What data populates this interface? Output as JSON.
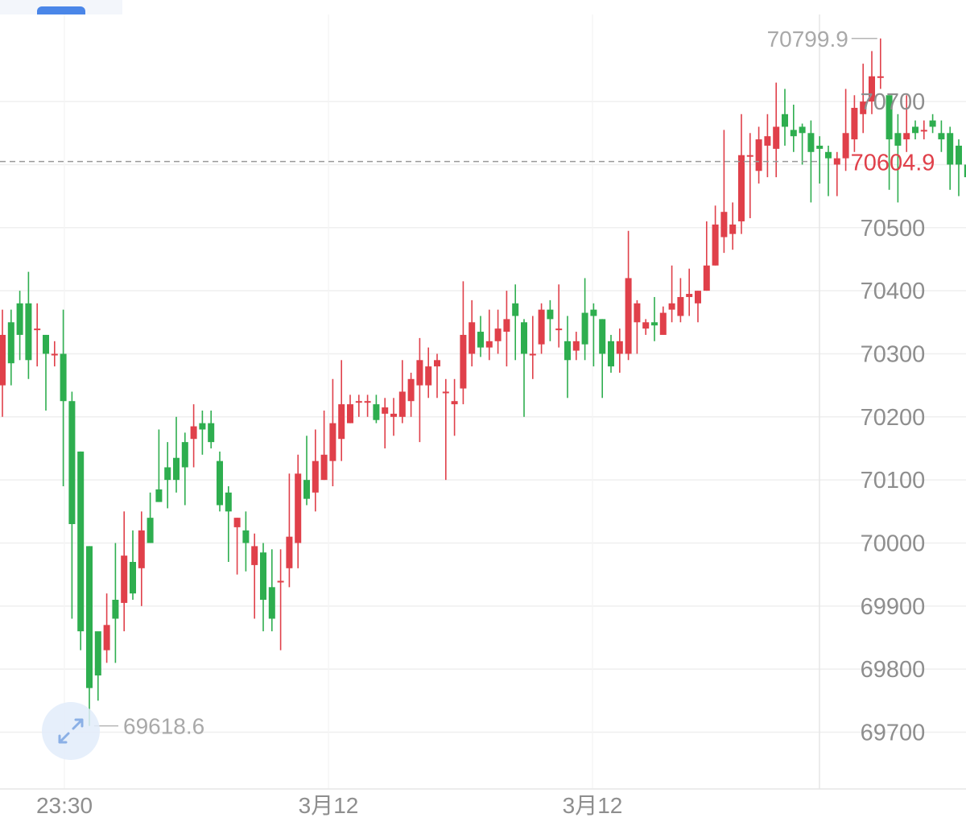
{
  "chart_data": {
    "type": "candlestick",
    "title": "",
    "xlabel": "",
    "ylabel": "",
    "ylim": [
      69610,
      70838
    ],
    "y_ticks": [
      "69700",
      "69800",
      "69900",
      "70000",
      "70100",
      "70200",
      "70300",
      "70400",
      "70500",
      "70600",
      "70700"
    ],
    "x_ticks": [
      "23:30",
      "3月12",
      "3月12"
    ],
    "current_price": "70604.9",
    "high_label": "70799.9",
    "low_label": "69618.6",
    "up_color": "#e0404a",
    "down_color": "#2eae4f",
    "candles": [
      [
        70250,
        70330,
        70200,
        70370
      ],
      [
        70350,
        70285,
        70250,
        70370
      ],
      [
        70380,
        70330,
        70290,
        70400
      ],
      [
        70380,
        70290,
        70260,
        70430
      ],
      [
        70340,
        70340,
        70280,
        70380
      ],
      [
        70330,
        70300,
        70210,
        70330
      ],
      [
        70300,
        70300,
        70280,
        70320
      ],
      [
        70300,
        70225,
        70090,
        70370
      ],
      [
        70225,
        70030,
        69880,
        70240
      ],
      [
        70145,
        69860,
        69830,
        70145
      ],
      [
        69995,
        69770,
        69710,
        69995
      ],
      [
        69860,
        69790,
        69750,
        69850
      ],
      [
        69830,
        69870,
        69810,
        69920
      ],
      [
        69910,
        69880,
        69810,
        70000
      ],
      [
        69905,
        69980,
        69860,
        70050
      ],
      [
        69970,
        69920,
        69910,
        70020
      ],
      [
        69960,
        70020,
        69900,
        70050
      ],
      [
        70040,
        70000,
        70000,
        70080
      ],
      [
        70085,
        70065,
        70065,
        70180
      ],
      [
        70120,
        70100,
        70055,
        70160
      ],
      [
        70135,
        70100,
        70080,
        70200
      ],
      [
        70160,
        70120,
        70060,
        70175
      ],
      [
        70165,
        70185,
        70120,
        70220
      ],
      [
        70190,
        70180,
        70140,
        70210
      ],
      [
        70190,
        70160,
        70150,
        70210
      ],
      [
        70130,
        70060,
        70050,
        70145
      ],
      [
        70080,
        70050,
        69970,
        70090
      ],
      [
        70025,
        70040,
        69950,
        70040
      ],
      [
        70020,
        70000,
        69955,
        70050
      ],
      [
        69965,
        69995,
        69880,
        70015
      ],
      [
        69985,
        69910,
        69860,
        70000
      ],
      [
        69930,
        69880,
        69860,
        69990
      ],
      [
        69940,
        69940,
        69830,
        69990
      ],
      [
        69960,
        70010,
        69930,
        70110
      ],
      [
        70000,
        70110,
        69960,
        70140
      ],
      [
        70100,
        70070,
        70060,
        70170
      ],
      [
        70080,
        70130,
        70050,
        70180
      ],
      [
        70100,
        70140,
        70100,
        70210
      ],
      [
        70130,
        70190,
        70090,
        70260
      ],
      [
        70165,
        70220,
        70130,
        70290
      ],
      [
        70190,
        70220,
        70190,
        70235
      ],
      [
        70225,
        70225,
        70200,
        70235
      ],
      [
        70225,
        70225,
        70200,
        70235
      ],
      [
        70220,
        70195,
        70190,
        70235
      ],
      [
        70205,
        70215,
        70150,
        70230
      ],
      [
        70200,
        70205,
        70170,
        70230
      ],
      [
        70200,
        70240,
        70190,
        70290
      ],
      [
        70225,
        70260,
        70200,
        70270
      ],
      [
        70250,
        70290,
        70160,
        70325
      ],
      [
        70250,
        70280,
        70230,
        70310
      ],
      [
        70280,
        70290,
        70230,
        70300
      ],
      [
        70240,
        70240,
        70100,
        70260
      ],
      [
        70220,
        70225,
        70170,
        70260
      ],
      [
        70245,
        70330,
        70220,
        70415
      ],
      [
        70300,
        70350,
        70280,
        70385
      ],
      [
        70335,
        70310,
        70295,
        70360
      ],
      [
        70310,
        70320,
        70290,
        70370
      ],
      [
        70320,
        70340,
        70300,
        70370
      ],
      [
        70335,
        70355,
        70280,
        70400
      ],
      [
        70380,
        70360,
        70290,
        70410
      ],
      [
        70350,
        70300,
        70200,
        70355
      ],
      [
        70300,
        70300,
        70260,
        70360
      ],
      [
        70315,
        70370,
        70300,
        70380
      ],
      [
        70370,
        70355,
        70320,
        70385
      ],
      [
        70340,
        70340,
        70310,
        70410
      ],
      [
        70320,
        70290,
        70230,
        70360
      ],
      [
        70305,
        70320,
        70290,
        70335
      ],
      [
        70365,
        70315,
        70290,
        70420
      ],
      [
        70370,
        70360,
        70280,
        70380
      ],
      [
        70355,
        70300,
        70230,
        70355
      ],
      [
        70320,
        70280,
        70270,
        70330
      ],
      [
        70300,
        70320,
        70270,
        70340
      ],
      [
        70300,
        70420,
        70290,
        70495
      ],
      [
        70350,
        70380,
        70300,
        70385
      ],
      [
        70340,
        70350,
        70330,
        70355
      ],
      [
        70350,
        70345,
        70320,
        70390
      ],
      [
        70330,
        70365,
        70330,
        70375
      ],
      [
        70370,
        70380,
        70350,
        70440
      ],
      [
        70360,
        70390,
        70350,
        70420
      ],
      [
        70390,
        70395,
        70360,
        70435
      ],
      [
        70380,
        70400,
        70350,
        70400
      ],
      [
        70400,
        70440,
        70400,
        70510
      ],
      [
        70440,
        70505,
        70440,
        70535
      ],
      [
        70485,
        70525,
        70460,
        70655
      ],
      [
        70490,
        70505,
        70465,
        70540
      ],
      [
        70510,
        70615,
        70490,
        70680
      ],
      [
        70615,
        70615,
        70515,
        70650
      ],
      [
        70590,
        70640,
        70570,
        70660
      ],
      [
        70630,
        70645,
        70580,
        70680
      ],
      [
        70625,
        70660,
        70580,
        70730
      ],
      [
        70680,
        70660,
        70630,
        70720
      ],
      [
        70655,
        70645,
        70620,
        70695
      ],
      [
        70660,
        70650,
        70600,
        70665
      ],
      [
        70650,
        70620,
        70540,
        70670
      ],
      [
        70630,
        70625,
        70570,
        70645
      ],
      [
        70620,
        70610,
        70550,
        70630
      ],
      [
        70600,
        70610,
        70550,
        70620
      ],
      [
        70610,
        70650,
        70590,
        70720
      ],
      [
        70640,
        70690,
        70620,
        70710
      ],
      [
        70680,
        70700,
        70650,
        70760
      ],
      [
        70700,
        70740,
        70680,
        70780
      ],
      [
        70740,
        70740,
        70720,
        70800
      ],
      [
        70710,
        70640,
        70560,
        70710
      ],
      [
        70650,
        70630,
        70540,
        70680
      ],
      [
        70640,
        70650,
        70620,
        70710
      ],
      [
        70660,
        70650,
        70640,
        70670
      ],
      [
        70655,
        70655,
        70640,
        70670
      ],
      [
        70670,
        70660,
        70650,
        70680
      ],
      [
        70650,
        70640,
        70620,
        70670
      ],
      [
        70650,
        70600,
        70560,
        70660
      ],
      [
        70630,
        70600,
        70550,
        70640
      ],
      [
        70600,
        70580,
        70520,
        70625
      ]
    ]
  }
}
